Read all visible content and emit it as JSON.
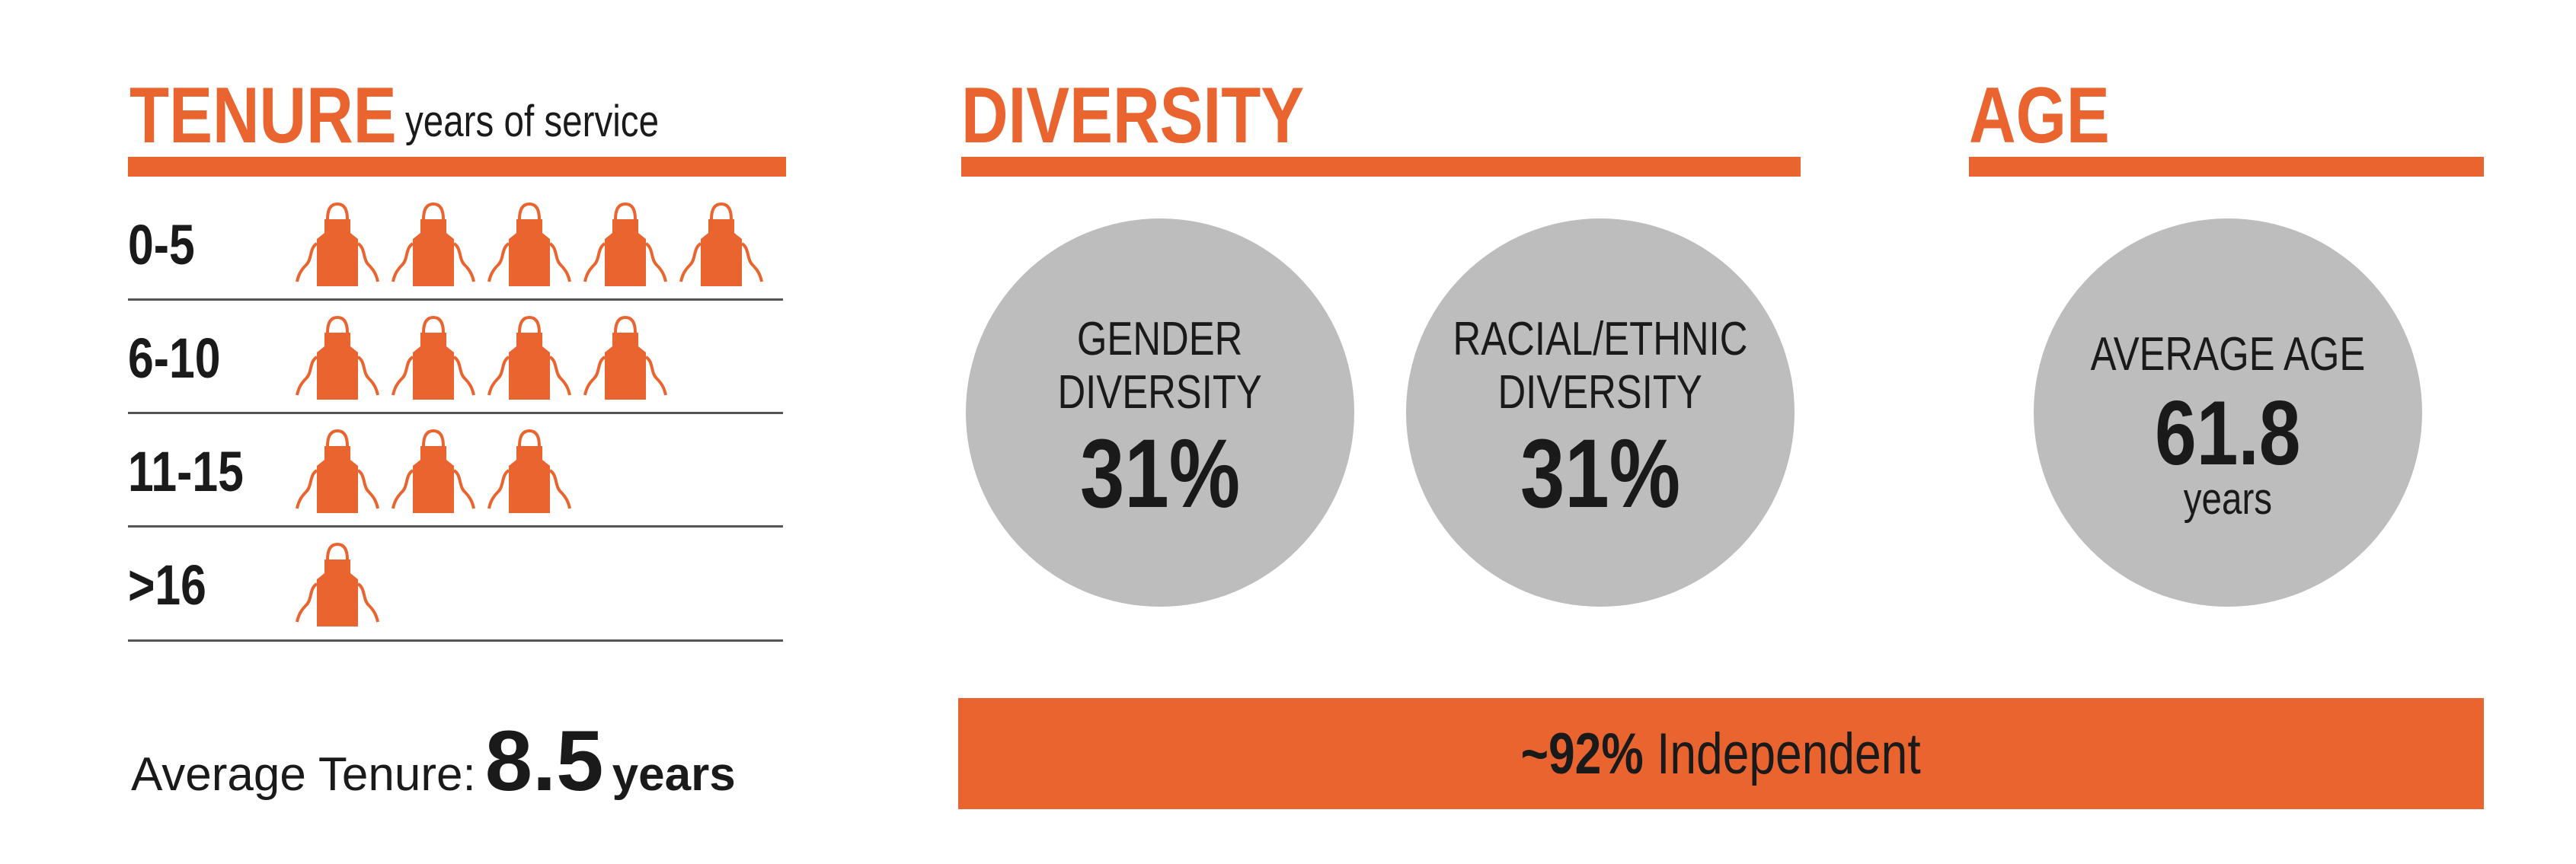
{
  "tenure": {
    "title": "TENURE",
    "subtitle": "years of service",
    "rows": [
      {
        "label": "0-5",
        "count": 5
      },
      {
        "label": "6-10",
        "count": 4
      },
      {
        "label": "11-15",
        "count": 3
      },
      {
        "label": ">16",
        "count": 1
      }
    ],
    "average_label": "Average Tenure:",
    "average_value": "8.5",
    "average_unit": "years"
  },
  "diversity": {
    "title": "DIVERSITY",
    "gender": {
      "label_line1": "GENDER",
      "label_line2": "DIVERSITY",
      "value": "31%"
    },
    "racial": {
      "label_line1": "RACIAL/ETHNIC",
      "label_line2": "DIVERSITY",
      "value": "31%"
    }
  },
  "age": {
    "title": "AGE",
    "label": "AVERAGE AGE",
    "value": "61.8",
    "unit": "years"
  },
  "independent": {
    "value": "~92%",
    "label": "Independent"
  },
  "colors": {
    "accent": "#ea6430",
    "circle": "#bdbdbd",
    "text": "#1a1a1a",
    "divider": "#555555"
  },
  "icons": {
    "tenure_unit": "apron-icon"
  }
}
